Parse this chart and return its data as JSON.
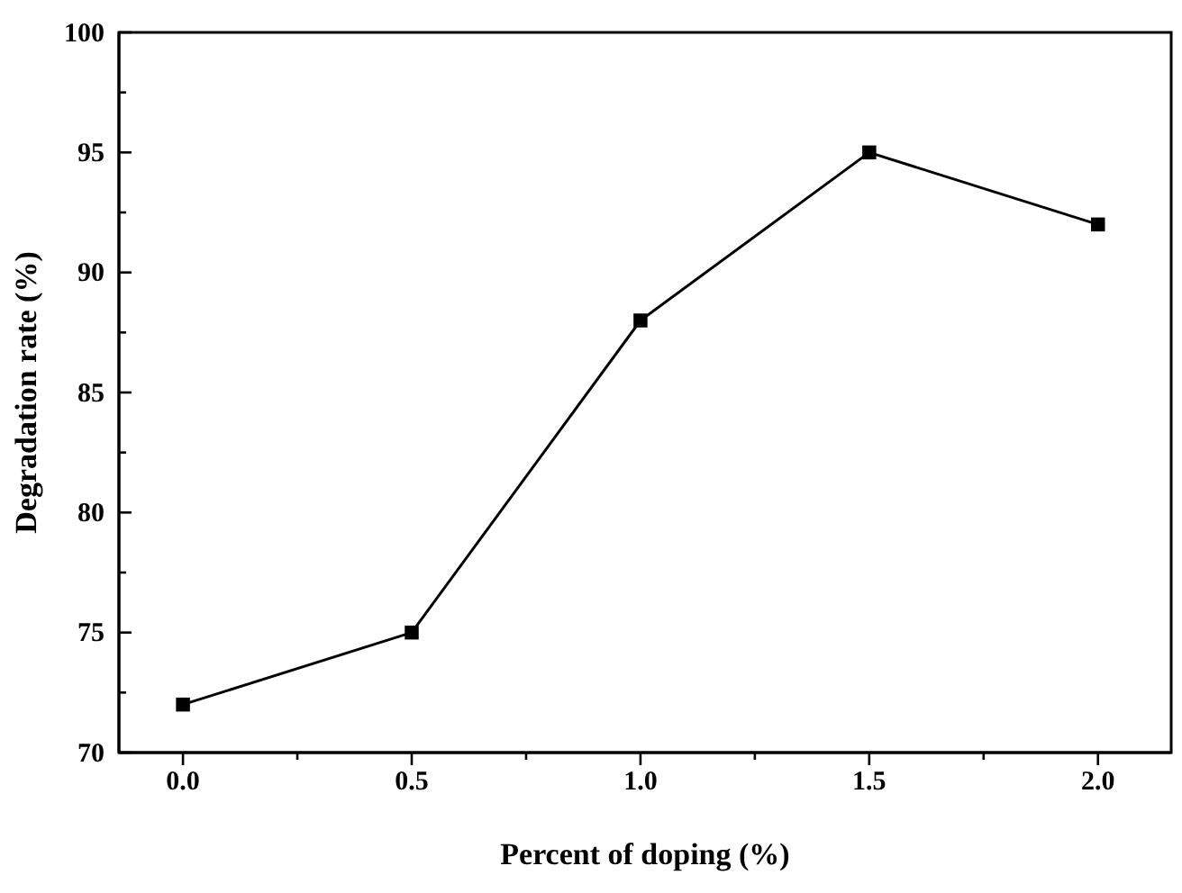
{
  "chart_data": {
    "type": "line",
    "xlabel": "Percent of doping (%)",
    "ylabel": "Degradation rate (%)",
    "x": [
      0,
      0.5,
      1,
      1.5,
      2
    ],
    "series": [
      {
        "color": "#000000",
        "values": [
          72,
          75,
          88,
          95,
          92
        ]
      }
    ],
    "xlim": [
      -0.14,
      2.16
    ],
    "xticks": [
      {
        "value": 0,
        "label": "0.0"
      },
      {
        "value": 0.25,
        "label": null
      },
      {
        "value": 0.5,
        "label": "0.5"
      },
      {
        "value": 0.75,
        "label": null
      },
      {
        "value": 1,
        "label": "1.0"
      },
      {
        "value": 1.25,
        "label": null
      },
      {
        "value": 1.5,
        "label": "1.5"
      },
      {
        "value": 1.75,
        "label": null
      },
      {
        "value": 2,
        "label": "2.0"
      }
    ],
    "ylim": [
      70,
      100
    ],
    "yticks": [
      70,
      {
        "value": 72.5,
        "label": null
      },
      75,
      {
        "value": 77.5,
        "label": null
      },
      80,
      {
        "value": 82.5,
        "label": null
      },
      85,
      {
        "value": 87.5,
        "label": null
      },
      90,
      {
        "value": 92.5,
        "label": null
      },
      95,
      {
        "value": 97.5,
        "label": null
      },
      100
    ],
    "marker": "square",
    "line_style": "solid"
  }
}
